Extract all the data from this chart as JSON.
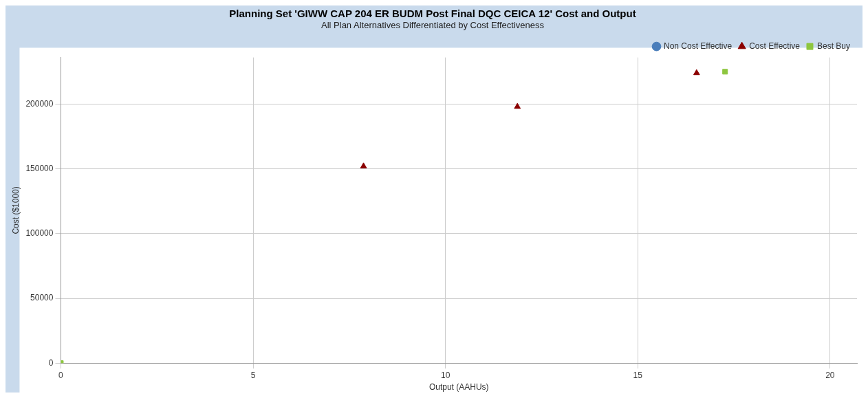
{
  "chart_data": {
    "type": "scatter",
    "title": "Planning Set 'GIWW CAP 204 ER BUDM Post Final DQC CEICA 12' Cost and Output",
    "subtitle": "All Plan Alternatives Differentiated by Cost Effectiveness",
    "xlabel": "Output (AAHUs)",
    "ylabel": "Cost ($1000)",
    "series": [
      {
        "name": "Non Cost Effective",
        "color": "#4a7ebb",
        "marker": "circle"
      },
      {
        "name": "Cost Effective",
        "color": "#8b0000",
        "marker": "triangle",
        "x": [
          7.87,
          11.87,
          16.53
        ],
        "values": [
          152000,
          198000,
          224000
        ]
      },
      {
        "name": "Best Buy",
        "color": "#8dc63f",
        "marker": "square",
        "x": [
          0,
          17.27
        ],
        "values": [
          0,
          225000
        ]
      }
    ],
    "xlim": [
      0,
      20.7
    ],
    "xticks": [
      0,
      5,
      10,
      15,
      20
    ],
    "ylim": [
      0,
      236000
    ],
    "yticks": [
      0,
      50000,
      100000,
      150000,
      200000
    ],
    "grid": true,
    "legend": "top right"
  }
}
